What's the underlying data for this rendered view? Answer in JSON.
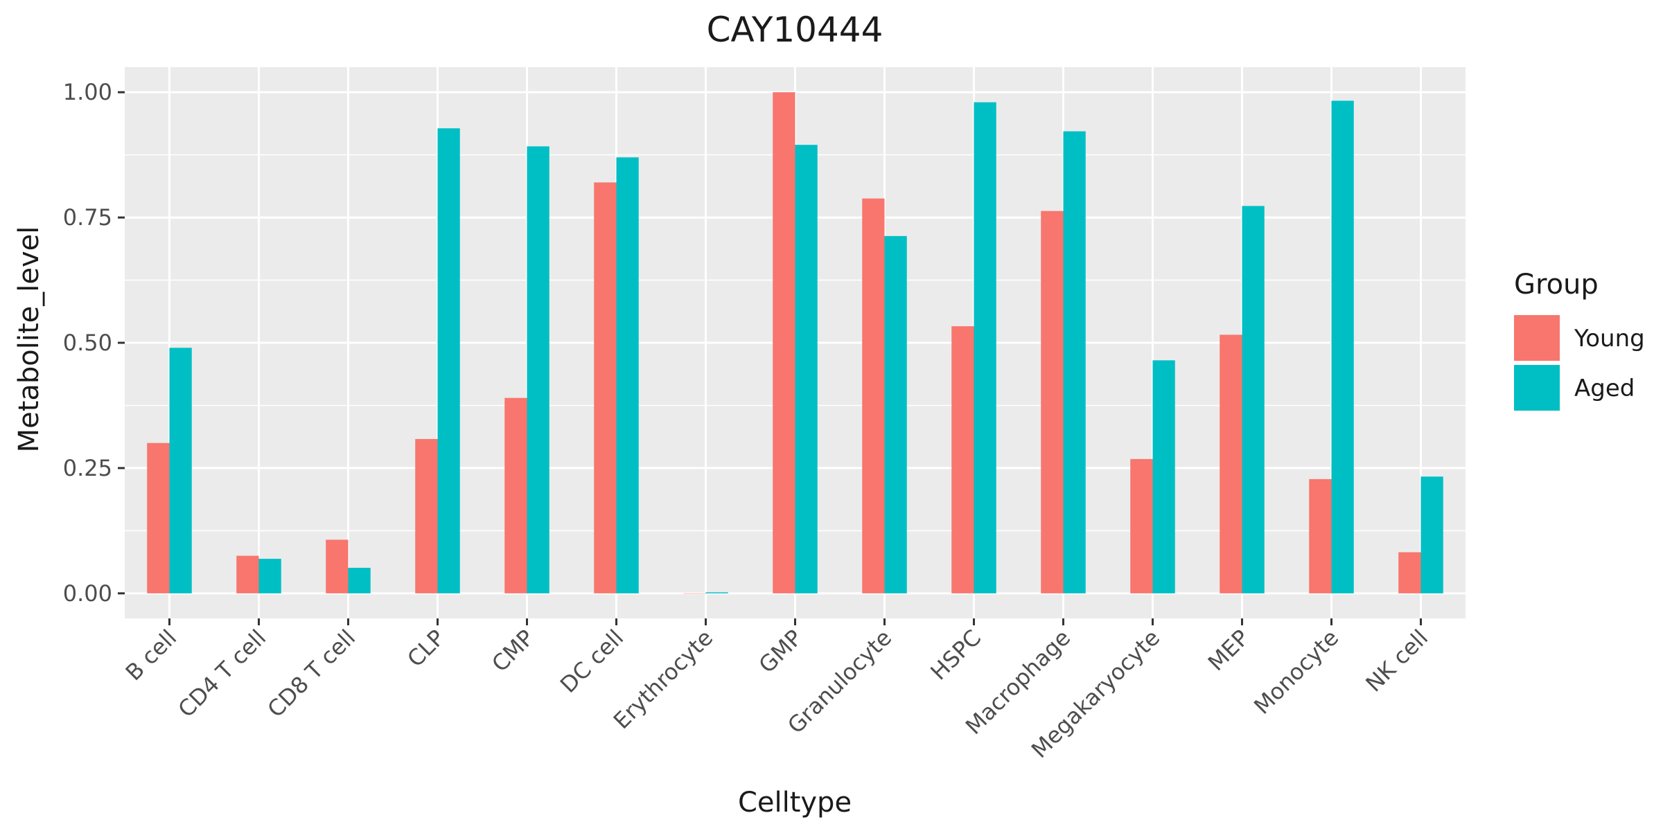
{
  "chart_data": {
    "type": "bar",
    "title": "CAY10444",
    "xlabel": "Celltype",
    "ylabel": "Metabolite_level",
    "ylim": [
      -0.05,
      1.05
    ],
    "yticks": [
      0,
      0.25,
      0.5,
      0.75,
      1.0
    ],
    "ytick_labels": [
      "0.00",
      "0.25",
      "0.50",
      "0.75",
      "1.00"
    ],
    "grid": true,
    "legend_position": "right",
    "categories": [
      "B cell",
      "CD4 T cell",
      "CD8 T cell",
      "CLP",
      "CMP",
      "DC cell",
      "Erythrocyte",
      "GMP",
      "Granulocyte",
      "HSPC",
      "Macrophage",
      "Megakaryocyte",
      "MEP",
      "Monocyte",
      "NK cell"
    ],
    "series": [
      {
        "name": "Young",
        "color": "#F8766D",
        "values": [
          0.3,
          0.075,
          0.107,
          0.308,
          0.39,
          0.82,
          0.0,
          1.0,
          0.788,
          0.533,
          0.763,
          0.268,
          0.516,
          0.228,
          0.082
        ]
      },
      {
        "name": "Aged",
        "color": "#00BFC4",
        "values": [
          0.49,
          0.069,
          0.051,
          0.928,
          0.892,
          0.87,
          0.002,
          0.895,
          0.713,
          0.98,
          0.922,
          0.465,
          0.773,
          0.983,
          0.233
        ]
      }
    ],
    "legend_title": "Group"
  }
}
